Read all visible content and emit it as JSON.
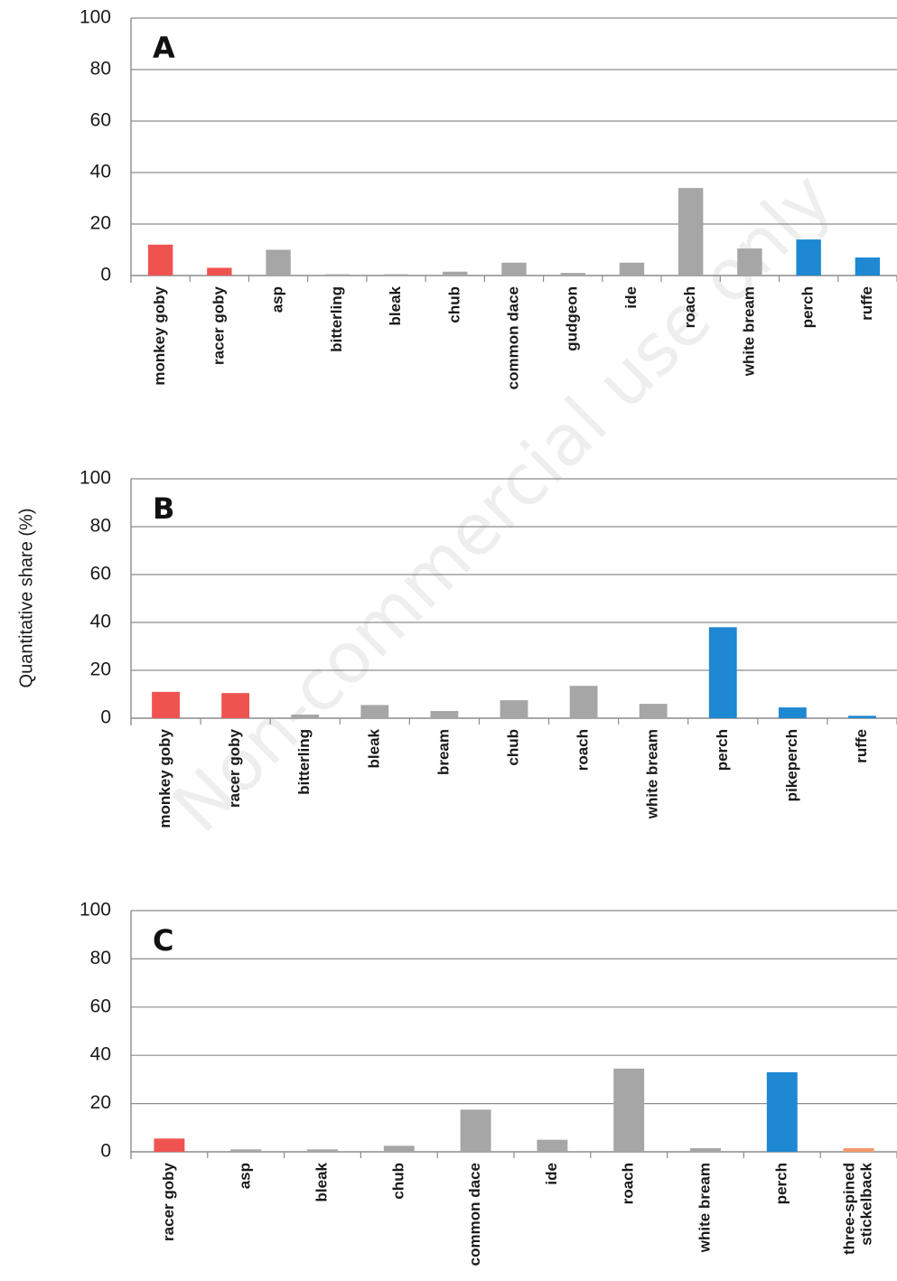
{
  "ylabel": "Quantitative share (%)",
  "watermark": "Non-commercial use only",
  "colors": {
    "goby": "#ef5350",
    "other": "#a6a6a7",
    "percid": "#1e88d2",
    "stickleback": "#f39a6b",
    "grid": "#8c8c8c"
  },
  "chart_data": [
    {
      "type": "bar",
      "panel": "A",
      "ylim": [
        0,
        100
      ],
      "yticks": [
        "0",
        "20",
        "40",
        "60",
        "80",
        "100"
      ],
      "grid": true,
      "categories": [
        "monkey goby",
        "racer goby",
        "asp",
        "bitterling",
        "bleak",
        "chub",
        "common dace",
        "gudgeon",
        "ide",
        "roach",
        "white bream",
        "perch",
        "ruffe"
      ],
      "values": [
        12,
        3,
        10,
        0.5,
        0.5,
        1.5,
        5,
        1,
        5,
        34,
        10.5,
        14,
        7
      ],
      "bar_colors": [
        "goby",
        "goby",
        "other",
        "other",
        "other",
        "other",
        "other",
        "other",
        "other",
        "other",
        "other",
        "percid",
        "percid"
      ]
    },
    {
      "type": "bar",
      "panel": "B",
      "ylim": [
        0,
        100
      ],
      "yticks": [
        "0",
        "20",
        "40",
        "60",
        "80",
        "100"
      ],
      "grid": true,
      "categories": [
        "monkey goby",
        "racer goby",
        "bitterling",
        "bleak",
        "bream",
        "chub",
        "roach",
        "white bream",
        "perch",
        "pikeperch",
        "ruffe"
      ],
      "values": [
        11,
        10.5,
        1.5,
        5.5,
        3,
        7.5,
        13.5,
        6,
        38,
        4.5,
        1
      ],
      "bar_colors": [
        "goby",
        "goby",
        "other",
        "other",
        "other",
        "other",
        "other",
        "other",
        "percid",
        "percid",
        "percid"
      ]
    },
    {
      "type": "bar",
      "panel": "C",
      "ylim": [
        0,
        100
      ],
      "yticks": [
        "0",
        "20",
        "40",
        "60",
        "80",
        "100"
      ],
      "grid": true,
      "categories": [
        "racer goby",
        "asp",
        "bleak",
        "chub",
        "common dace",
        "ide",
        "roach",
        "white bream",
        "perch",
        "three-spined stickelback"
      ],
      "category_lines": [
        [
          "racer goby"
        ],
        [
          "asp"
        ],
        [
          "bleak"
        ],
        [
          "chub"
        ],
        [
          "common dace"
        ],
        [
          "ide"
        ],
        [
          "roach"
        ],
        [
          "white bream"
        ],
        [
          "perch"
        ],
        [
          "three-spined",
          "stickelback"
        ]
      ],
      "values": [
        5.5,
        1,
        1,
        2.5,
        17.5,
        5,
        34.5,
        1.5,
        33,
        1.5
      ],
      "bar_colors": [
        "goby",
        "other",
        "other",
        "other",
        "other",
        "other",
        "other",
        "other",
        "percid",
        "stickleback"
      ]
    }
  ]
}
